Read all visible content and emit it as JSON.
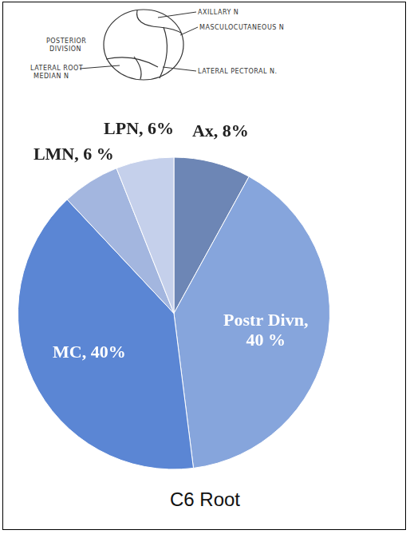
{
  "chart_data": {
    "type": "pie",
    "title": "C6 Root",
    "categories": [
      "Ax",
      "Postr Divn",
      "MC",
      "LMN",
      "LPN"
    ],
    "values": [
      8,
      40,
      40,
      6,
      6
    ],
    "value_labels": [
      "Ax, 8%",
      "Postr Divn, 40 %",
      "MC, 40%",
      "LMN, 6 %",
      "LPN, 6%"
    ],
    "colors": [
      "#6d86b5",
      "#86a5dc",
      "#5b86d4",
      "#a3b6df",
      "#c5d0eb"
    ],
    "data_labels": true
  },
  "diagram": {
    "labels": [
      {
        "lines": [
          "AXILLARY N"
        ]
      },
      {
        "lines": [
          "MASCULOCUTANEOUS N"
        ]
      },
      {
        "lines": [
          "POSTERIOR",
          "DIVISION"
        ]
      },
      {
        "lines": [
          "LATERAL ROOT",
          "MEDIAN N"
        ]
      },
      {
        "lines": [
          "LATERAL PECTORAL N."
        ]
      }
    ]
  }
}
